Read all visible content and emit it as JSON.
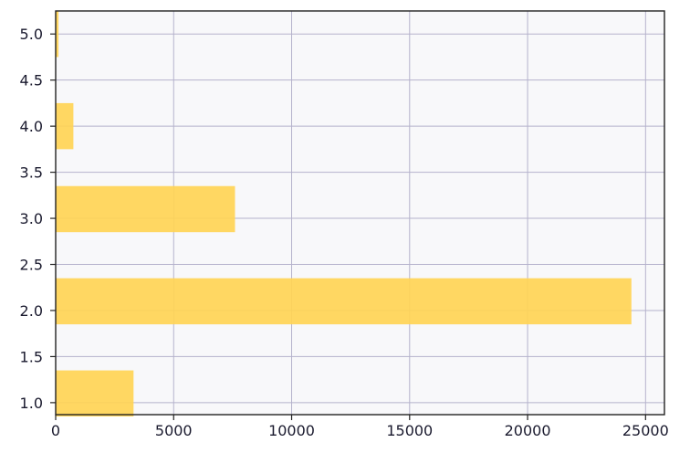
{
  "chart_data": {
    "type": "bar",
    "orientation": "horizontal",
    "y_positions": [
      1.1,
      2.1,
      3.1,
      4.0,
      5.0
    ],
    "values": [
      3300,
      24400,
      7600,
      750,
      120
    ],
    "bar_height": 0.5,
    "xlim": [
      0,
      25800
    ],
    "ylim": [
      0.87,
      5.25
    ],
    "x_ticks": [
      "0",
      "5000",
      "10000",
      "15000",
      "20000",
      "25000"
    ],
    "y_ticks": [
      "1.0",
      "1.5",
      "2.0",
      "2.5",
      "3.0",
      "3.5",
      "4.0",
      "4.5",
      "5.0"
    ],
    "grid": true,
    "bar_color": "#FFD455",
    "grid_color": "#B5B2CC",
    "plot_background": "#F8F8FA",
    "axis_color": "#222222"
  }
}
